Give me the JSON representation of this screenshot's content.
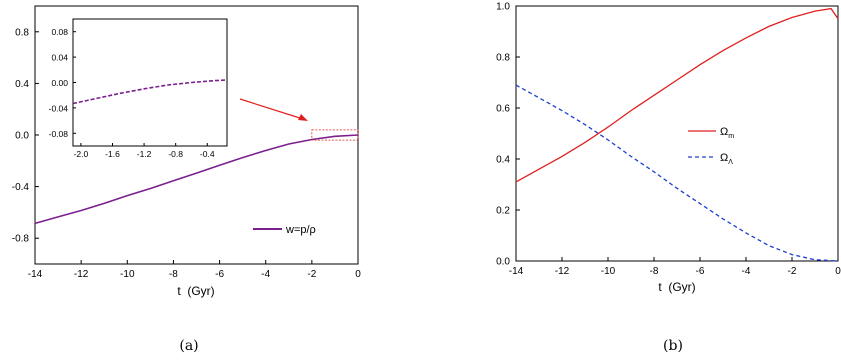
{
  "chart_data": [
    {
      "type": "line",
      "caption": "(a)",
      "xlabel": "t  (Gyr)",
      "ylabel": "",
      "xlim": [
        -14,
        0
      ],
      "ylim": [
        -1.0,
        1.0
      ],
      "x_ticks": [
        "-14",
        "-12",
        "-10",
        "-8",
        "-6",
        "-4",
        "-2",
        "0"
      ],
      "y_ticks": [
        "-0.8",
        "-0.4",
        "0.0",
        "0.4",
        "0.8"
      ],
      "legend_position": "bottom-right",
      "series": [
        {
          "name": "w=p/ρ",
          "color": "#7b1f8f",
          "style": "solid",
          "x": [
            -14,
            -13,
            -12,
            -11,
            -10,
            -9,
            -8,
            -7,
            -6,
            -5,
            -4,
            -3,
            -2,
            -1,
            0
          ],
          "y": [
            -0.685,
            -0.635,
            -0.585,
            -0.53,
            -0.47,
            -0.415,
            -0.355,
            -0.295,
            -0.235,
            -0.175,
            -0.12,
            -0.07,
            -0.035,
            -0.01,
            0.0
          ]
        }
      ],
      "inset": {
        "xlim": [
          -2.1,
          -0.15
        ],
        "ylim": [
          -0.1,
          0.1
        ],
        "x_ticks": [
          "-2.0",
          "-1.6",
          "-1.2",
          "-0.8",
          "-0.4"
        ],
        "y_ticks": [
          "0.08",
          "0.04",
          "0.00",
          "-0.04",
          "-0.08"
        ],
        "series": {
          "color": "#7b1f8f",
          "style": "dashed",
          "x": [
            -2.1,
            -1.8,
            -1.5,
            -1.2,
            -0.9,
            -0.6,
            -0.3,
            -0.15
          ],
          "y": [
            -0.033,
            -0.025,
            -0.017,
            -0.01,
            -0.004,
            0.0,
            0.003,
            0.004
          ]
        }
      },
      "zoom_box": {
        "x": [
          -2,
          0
        ],
        "y": [
          -0.04,
          0.04
        ],
        "color": "#e02020"
      }
    },
    {
      "type": "line",
      "caption": "(b)",
      "xlabel": "t  (Gyr)",
      "ylabel": "",
      "xlim": [
        -14,
        0
      ],
      "ylim": [
        0.0,
        1.0
      ],
      "x_ticks": [
        "-14",
        "-12",
        "-10",
        "-8",
        "-6",
        "-4",
        "-2",
        "0"
      ],
      "y_ticks": [
        "0.0",
        "0.2",
        "0.4",
        "0.6",
        "0.8",
        "1.0"
      ],
      "legend_position": "right",
      "series": [
        {
          "name": "Ω",
          "subscript": "m",
          "color": "#e02020",
          "style": "solid",
          "x": [
            -14,
            -13,
            -12,
            -11,
            -10,
            -9,
            -8,
            -7,
            -6,
            -5,
            -4,
            -3,
            -2,
            -1,
            -0.3,
            0
          ],
          "y": [
            0.31,
            0.36,
            0.41,
            0.465,
            0.525,
            0.59,
            0.65,
            0.71,
            0.77,
            0.825,
            0.875,
            0.92,
            0.955,
            0.98,
            0.99,
            0.95
          ]
        },
        {
          "name": "Ω",
          "subscript": "Λ",
          "color": "#1f3fd0",
          "style": "dashed",
          "x": [
            -14,
            -13,
            -12,
            -11,
            -10,
            -9,
            -8,
            -7,
            -6,
            -5,
            -4,
            -3,
            -2,
            -1,
            0
          ],
          "y": [
            0.69,
            0.64,
            0.59,
            0.535,
            0.475,
            0.41,
            0.35,
            0.285,
            0.225,
            0.165,
            0.11,
            0.06,
            0.025,
            0.005,
            0.0
          ]
        }
      ]
    }
  ]
}
